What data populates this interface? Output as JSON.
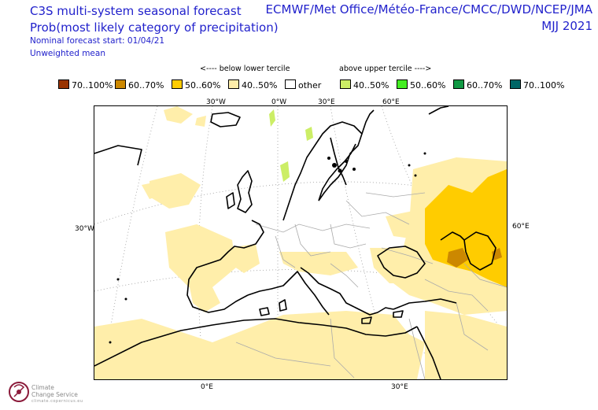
{
  "title": {
    "line1": "C3S multi-system seasonal forecast",
    "line2": "Prob(most likely category of precipitation)",
    "line3": "Nominal forecast start: 01/04/21",
    "line4": "Unweighted mean",
    "right1": "ECMWF/Met Office/Météo-France/CMCC/DWD/NCEP/JMA",
    "right2": "MJJ 2021"
  },
  "legend": {
    "below_header": "<---- below lower tercile",
    "above_header": "above upper tercile ---->",
    "items": [
      {
        "label": "70..100%",
        "color": "#993300"
      },
      {
        "label": "60..70%",
        "color": "#cc8800"
      },
      {
        "label": "50..60%",
        "color": "#ffcc00"
      },
      {
        "label": "40..50%",
        "color": "#ffeeaa"
      },
      {
        "label": "other",
        "color": "#ffffff"
      },
      {
        "label": "40..50%",
        "color": "#ccee66"
      },
      {
        "label": "50..60%",
        "color": "#44ee22"
      },
      {
        "label": "60..70%",
        "color": "#119944"
      },
      {
        "label": "70..100%",
        "color": "#006666"
      }
    ]
  },
  "grid_labels": {
    "top_30w": "30°W",
    "top_0": "0°W",
    "top_30e": "30°E",
    "top_60e": "60°E",
    "left_30w": "30°W",
    "right_60e": "60°E",
    "bottom_0": "0°E",
    "bottom_30e": "30°E"
  },
  "logo": {
    "line1": "Climate",
    "line2": "Change Service",
    "line3": "climate.copernicus.eu"
  }
}
